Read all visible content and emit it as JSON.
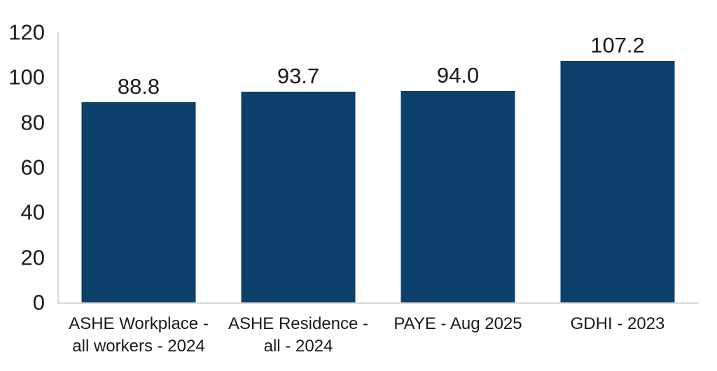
{
  "chart_data": {
    "type": "bar",
    "title": "",
    "xlabel": "",
    "ylabel": "",
    "categories": [
      "ASHE Workplace -\nall workers - 2024",
      "ASHE Residence -\nall - 2024",
      "PAYE - Aug 2025",
      "GDHI - 2023"
    ],
    "values": [
      88.8,
      93.7,
      94.0,
      107.2
    ],
    "value_labels": [
      "88.8",
      "93.7",
      "94.0",
      "107.2"
    ],
    "ylim": [
      0,
      120
    ],
    "yticks": [
      0,
      20,
      40,
      60,
      80,
      100,
      120
    ],
    "grid": false,
    "legend": "none",
    "data_labels_position": "above-bars",
    "colors": {
      "bar": "#0d406b",
      "axis_line": "#d9d9d9",
      "text": "#1a1a1a",
      "background": "#ffffff"
    }
  }
}
